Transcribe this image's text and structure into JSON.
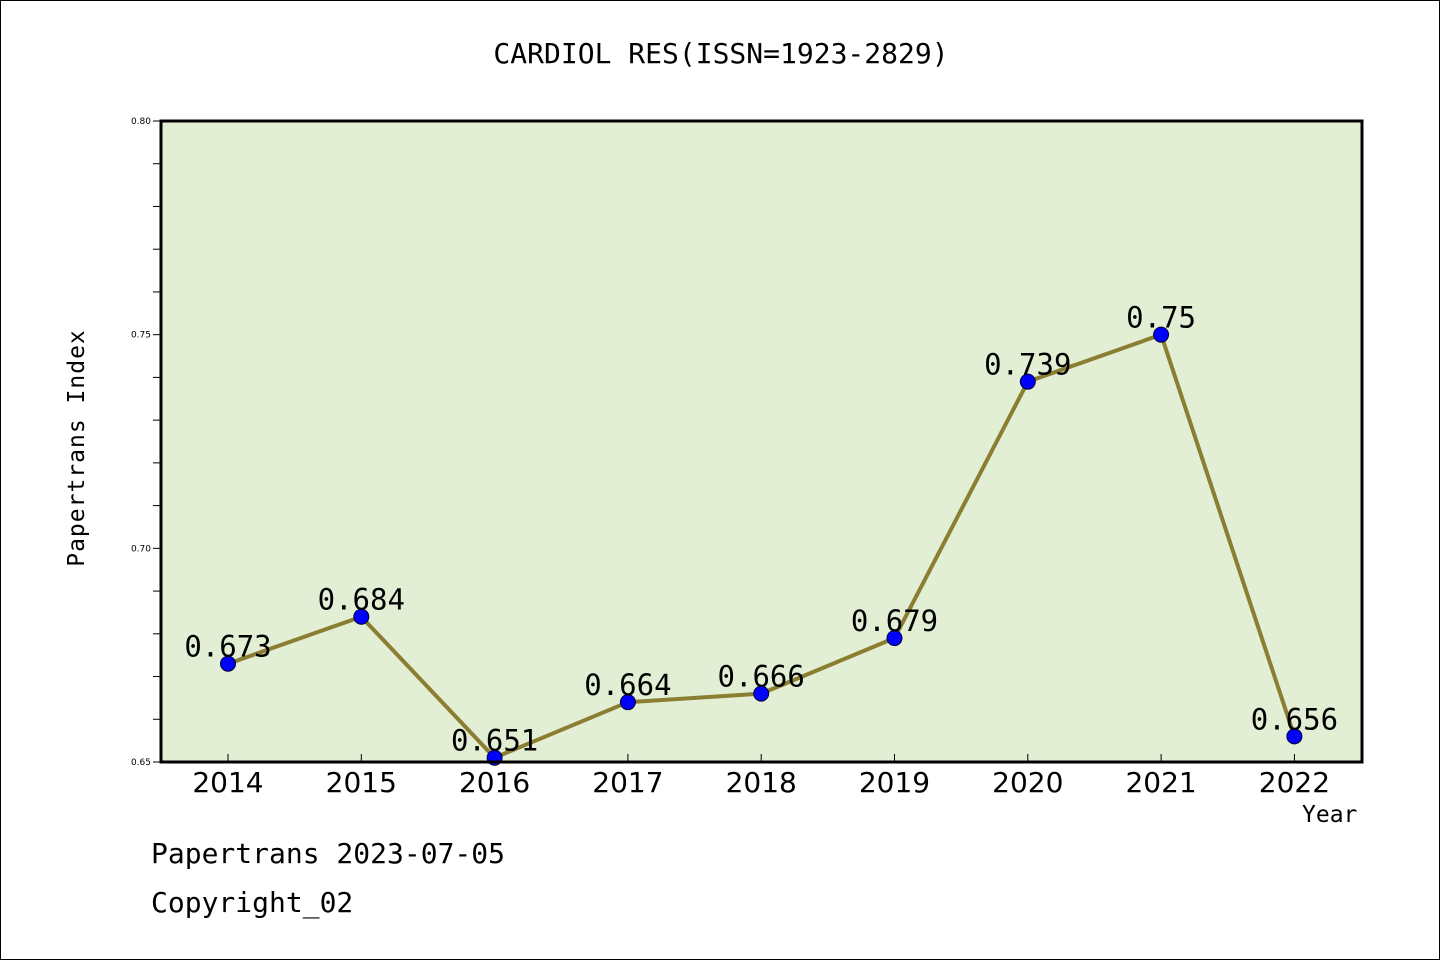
{
  "chart_data": {
    "type": "line",
    "title": "CARDIOL RES(ISSN=1923-2829)",
    "xlabel": "Year",
    "ylabel": "Papertrans Index",
    "categories": [
      "2014",
      "2015",
      "2016",
      "2017",
      "2018",
      "2019",
      "2020",
      "2021",
      "2022"
    ],
    "series": [
      {
        "values": [
          0.673,
          0.684,
          0.651,
          0.664,
          0.666,
          0.679,
          0.739,
          0.75,
          0.656
        ],
        "labels": [
          "0.673",
          "0.684",
          "0.651",
          "0.664",
          "0.666",
          "0.679",
          "0.739",
          "0.75",
          "0.656"
        ]
      }
    ],
    "ylim": [
      0.65,
      0.8
    ],
    "yticks": [
      "0.65",
      "0.70",
      "0.75",
      "0.80"
    ],
    "grid": false,
    "colors": {
      "plot_background": "#e2efd4",
      "line": "#8b7d32",
      "marker": "#0000ff"
    }
  },
  "footer": {
    "date_line": "Papertrans 2023-07-05",
    "copyright": "Copyright_02"
  }
}
